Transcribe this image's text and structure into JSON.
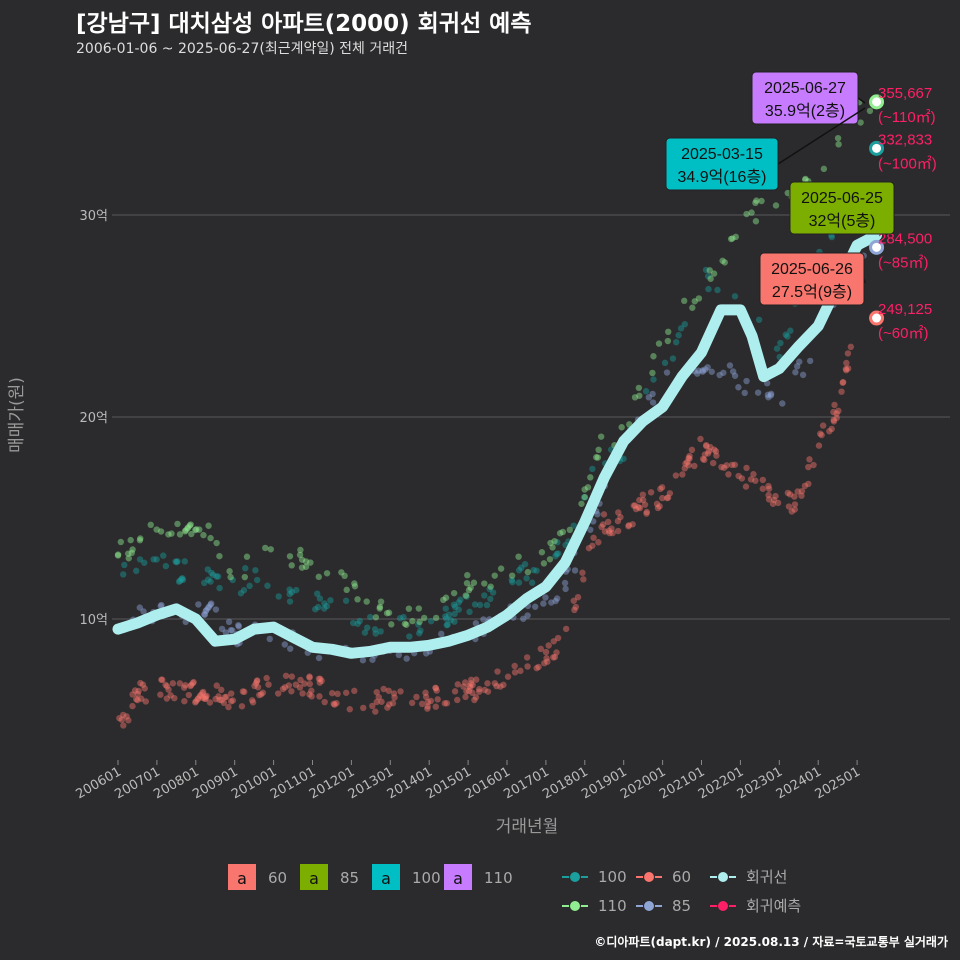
{
  "title": "[강남구] 대치삼성 아파트(2000) 회귀선 예측",
  "subtitle": "2006-01-06 ~ 2025-06-27(최근계약일) 전체 거래건",
  "caption": "©디아파트(dapt.kr) / 2025.08.13 / 자료=국토교통부 실거래가",
  "colors": {
    "s60": "#f8766d",
    "s85": "#7cae00",
    "s100": "#00bfc4",
    "s110": "#c77cff",
    "l100": "#1b9e9e",
    "l110": "#90ee90",
    "l85": "#8fa5d6",
    "reg": "#aeeeee",
    "pred": "#ff1f66"
  },
  "chart_data": {
    "type": "line",
    "xlabel": "거래년월",
    "ylabel": "매매가(원)",
    "x_ticks": [
      "200601",
      "200701",
      "200801",
      "200901",
      "201001",
      "201101",
      "201201",
      "201301",
      "201401",
      "201501",
      "201601",
      "201701",
      "201801",
      "201901",
      "202001",
      "202101",
      "202201",
      "202301",
      "202401",
      "202501"
    ],
    "y_ticks": [
      {
        "label": "10억",
        "value": 10
      },
      {
        "label": "20억",
        "value": 20
      },
      {
        "label": "30억",
        "value": 30
      }
    ],
    "ylim": [
      3,
      37
    ],
    "series": [
      {
        "name": "100",
        "color": "#1b9e9e",
        "points": [
          [
            2006.0,
            12.2
          ],
          [
            2006.5,
            12.8
          ],
          [
            2007.0,
            13.1
          ],
          [
            2007.5,
            12.4
          ],
          [
            2008.0,
            12.2
          ],
          [
            2009.0,
            11.6
          ],
          [
            2009.5,
            12.3
          ],
          [
            2010.0,
            11.3
          ],
          [
            2011.0,
            10.8
          ],
          [
            2012.0,
            10.4
          ],
          [
            2012.5,
            9.6
          ],
          [
            2013.0,
            9.5
          ],
          [
            2014.0,
            9.8
          ],
          [
            2015.0,
            10.6
          ],
          [
            2016.0,
            11.8
          ],
          [
            2017.0,
            12.6
          ],
          [
            2017.6,
            14.0
          ],
          [
            2018.0,
            16.6
          ],
          [
            2018.5,
            17.8
          ],
          [
            2019.0,
            18.3
          ],
          [
            2019.5,
            20.8
          ],
          [
            2020.0,
            22.5
          ],
          [
            2020.5,
            24.0
          ],
          [
            2021.0,
            27.0
          ],
          [
            2022.0,
            25.5
          ],
          [
            2023.0,
            23.0
          ],
          [
            2023.5,
            26.0
          ],
          [
            2024.0,
            27.5
          ],
          [
            2024.5,
            30.0
          ],
          [
            2025.2,
            33.3
          ]
        ]
      },
      {
        "name": "110",
        "color": "#90ee90",
        "points": [
          [
            2006.0,
            13.2
          ],
          [
            2006.5,
            13.8
          ],
          [
            2007.0,
            14.6
          ],
          [
            2007.5,
            14.6
          ],
          [
            2008.0,
            14.5
          ],
          [
            2008.5,
            14.1
          ],
          [
            2009.0,
            12.0
          ],
          [
            2009.5,
            13.2
          ],
          [
            2010.0,
            13.2
          ],
          [
            2011.0,
            12.8
          ],
          [
            2013.0,
            10.0
          ],
          [
            2013.5,
            10.2
          ],
          [
            2014.0,
            10.0
          ],
          [
            2014.5,
            11.0
          ],
          [
            2015.0,
            11.8
          ],
          [
            2015.5,
            12.0
          ],
          [
            2016.0,
            12.3
          ],
          [
            2016.5,
            12.8
          ],
          [
            2017.0,
            13.0
          ],
          [
            2017.5,
            14.3
          ],
          [
            2018.0,
            16.5
          ],
          [
            2018.5,
            19.3
          ],
          [
            2019.0,
            19.0
          ],
          [
            2019.5,
            22.0
          ],
          [
            2020.0,
            23.5
          ],
          [
            2020.5,
            25.2
          ],
          [
            2022.5,
            30.4
          ],
          [
            2023.0,
            30.6
          ],
          [
            2024.0,
            32.0
          ],
          [
            2024.5,
            34.0
          ],
          [
            2025.5,
            35.9
          ]
        ]
      },
      {
        "name": "60",
        "color": "#f8766d",
        "points": [
          [
            2006.0,
            4.6
          ],
          [
            2006.5,
            6.3
          ],
          [
            2007.0,
            6.6
          ],
          [
            2008.0,
            6.4
          ],
          [
            2008.5,
            6.4
          ],
          [
            2009.0,
            5.8
          ],
          [
            2009.5,
            6.4
          ],
          [
            2010.0,
            6.7
          ],
          [
            2011.0,
            6.7
          ],
          [
            2011.5,
            6.2
          ],
          [
            2012.0,
            6.0
          ],
          [
            2012.5,
            5.9
          ],
          [
            2013.0,
            6.1
          ],
          [
            2013.5,
            6.1
          ],
          [
            2014.0,
            6.1
          ],
          [
            2014.5,
            6.2
          ],
          [
            2015.0,
            6.4
          ],
          [
            2015.5,
            6.8
          ],
          [
            2016.0,
            7.1
          ],
          [
            2016.5,
            7.6
          ],
          [
            2017.0,
            8.2
          ],
          [
            2017.5,
            9.2
          ],
          [
            2018.0,
            12.5
          ],
          [
            2018.5,
            14.8
          ],
          [
            2019.0,
            14.8
          ],
          [
            2019.5,
            15.7
          ],
          [
            2020.0,
            16.0
          ],
          [
            2020.5,
            17.3
          ],
          [
            2021.0,
            18.5
          ],
          [
            2023.0,
            16.0
          ],
          [
            2023.5,
            15.8
          ],
          [
            2024.0,
            18.7
          ],
          [
            2024.5,
            20.5
          ],
          [
            2025.0,
            25.0
          ]
        ]
      },
      {
        "name": "85",
        "color": "#8fa5d6",
        "points": [
          [
            2006.0,
            9.3
          ],
          [
            2006.5,
            10.3
          ],
          [
            2007.0,
            10.4
          ],
          [
            2008.0,
            10.3
          ],
          [
            2008.5,
            10.3
          ],
          [
            2009.0,
            9.1
          ],
          [
            2009.5,
            9.4
          ],
          [
            2010.0,
            9.5
          ],
          [
            2010.5,
            9.0
          ],
          [
            2011.0,
            8.7
          ],
          [
            2012.0,
            8.2
          ],
          [
            2012.5,
            8.3
          ],
          [
            2013.0,
            8.4
          ],
          [
            2014.0,
            8.8
          ],
          [
            2015.0,
            9.3
          ],
          [
            2016.0,
            10.2
          ],
          [
            2017.0,
            11.0
          ],
          [
            2017.5,
            11.8
          ],
          [
            2018.0,
            14.0
          ],
          [
            2018.5,
            16.5
          ],
          [
            2019.0,
            18.3
          ],
          [
            2019.5,
            20.0
          ],
          [
            2020.0,
            21.5
          ],
          [
            2020.5,
            22.3
          ],
          [
            2021.0,
            22.6
          ],
          [
            2023.0,
            21.0
          ],
          [
            2023.5,
            22.2
          ],
          [
            2024.0,
            24.0
          ],
          [
            2024.5,
            26.0
          ],
          [
            2025.2,
            28.4
          ]
        ]
      },
      {
        "name": "회귀선",
        "color": "#aeeeee",
        "points": [
          [
            2006.0,
            9.5
          ],
          [
            2006.5,
            9.8
          ],
          [
            2007.0,
            10.2
          ],
          [
            2007.5,
            10.5
          ],
          [
            2008.0,
            10.0
          ],
          [
            2008.5,
            8.9
          ],
          [
            2009.0,
            9.0
          ],
          [
            2009.5,
            9.5
          ],
          [
            2010.0,
            9.6
          ],
          [
            2010.5,
            9.1
          ],
          [
            2011.0,
            8.6
          ],
          [
            2011.5,
            8.5
          ],
          [
            2012.0,
            8.3
          ],
          [
            2012.5,
            8.4
          ],
          [
            2013.0,
            8.6
          ],
          [
            2013.5,
            8.6
          ],
          [
            2014.0,
            8.7
          ],
          [
            2014.5,
            8.9
          ],
          [
            2015.0,
            9.2
          ],
          [
            2015.5,
            9.6
          ],
          [
            2016.0,
            10.2
          ],
          [
            2016.5,
            11.0
          ],
          [
            2017.0,
            11.6
          ],
          [
            2017.5,
            12.8
          ],
          [
            2018.0,
            14.8
          ],
          [
            2018.5,
            17.0
          ],
          [
            2019.0,
            18.8
          ],
          [
            2019.5,
            19.8
          ],
          [
            2020.0,
            20.5
          ],
          [
            2020.5,
            22.0
          ],
          [
            2021.0,
            23.2
          ],
          [
            2021.5,
            25.3
          ],
          [
            2022.0,
            25.3
          ],
          [
            2022.3,
            24.0
          ],
          [
            2022.6,
            22.0
          ],
          [
            2023.0,
            22.4
          ],
          [
            2023.5,
            23.5
          ],
          [
            2024.0,
            24.5
          ],
          [
            2024.5,
            26.5
          ],
          [
            2025.0,
            28.5
          ],
          [
            2025.5,
            29.0
          ]
        ]
      }
    ],
    "predictions": [
      {
        "value": "355,667",
        "area": "(~110㎡)",
        "y": 35.6,
        "color": "#90ee90"
      },
      {
        "value": "332,833",
        "area": "(~100㎡)",
        "y": 33.3,
        "color": "#1b9e9e"
      },
      {
        "value": "284,500",
        "area": "(~85㎡)",
        "y": 28.4,
        "color": "#8fa5d6"
      },
      {
        "value": "249,125",
        "area": "(~60㎡)",
        "y": 24.9,
        "color": "#f8766d"
      }
    ],
    "annotations": [
      {
        "date": "2025-06-27",
        "price": "35.9억(2층)",
        "fill": "#c77cff",
        "y": 35.9
      },
      {
        "date": "2025-03-15",
        "price": "34.9억(16층)",
        "fill": "#00bfc4",
        "y": 34.9
      },
      {
        "date": "2025-06-25",
        "price": "32억(5층)",
        "fill": "#7cae00",
        "y": 32.0
      },
      {
        "date": "2025-06-26",
        "price": "27.5억(9층)",
        "fill": "#f8766d",
        "y": 27.5
      }
    ],
    "legend_boxes": [
      {
        "label": "60",
        "color": "#f8766d"
      },
      {
        "label": "85",
        "color": "#7cae00"
      },
      {
        "label": "100",
        "color": "#00bfc4"
      },
      {
        "label": "110",
        "color": "#c77cff"
      }
    ],
    "legend_box_glyph": "a",
    "legend_lines": [
      {
        "label": "100",
        "color": "#1b9e9e"
      },
      {
        "label": "60",
        "color": "#f8766d"
      },
      {
        "label": "회귀선",
        "color": "#aeeeee"
      },
      {
        "label": "110",
        "color": "#90ee90"
      },
      {
        "label": "85",
        "color": "#8fa5d6"
      },
      {
        "label": "회귀예측",
        "color": "#ff1f66"
      }
    ]
  }
}
